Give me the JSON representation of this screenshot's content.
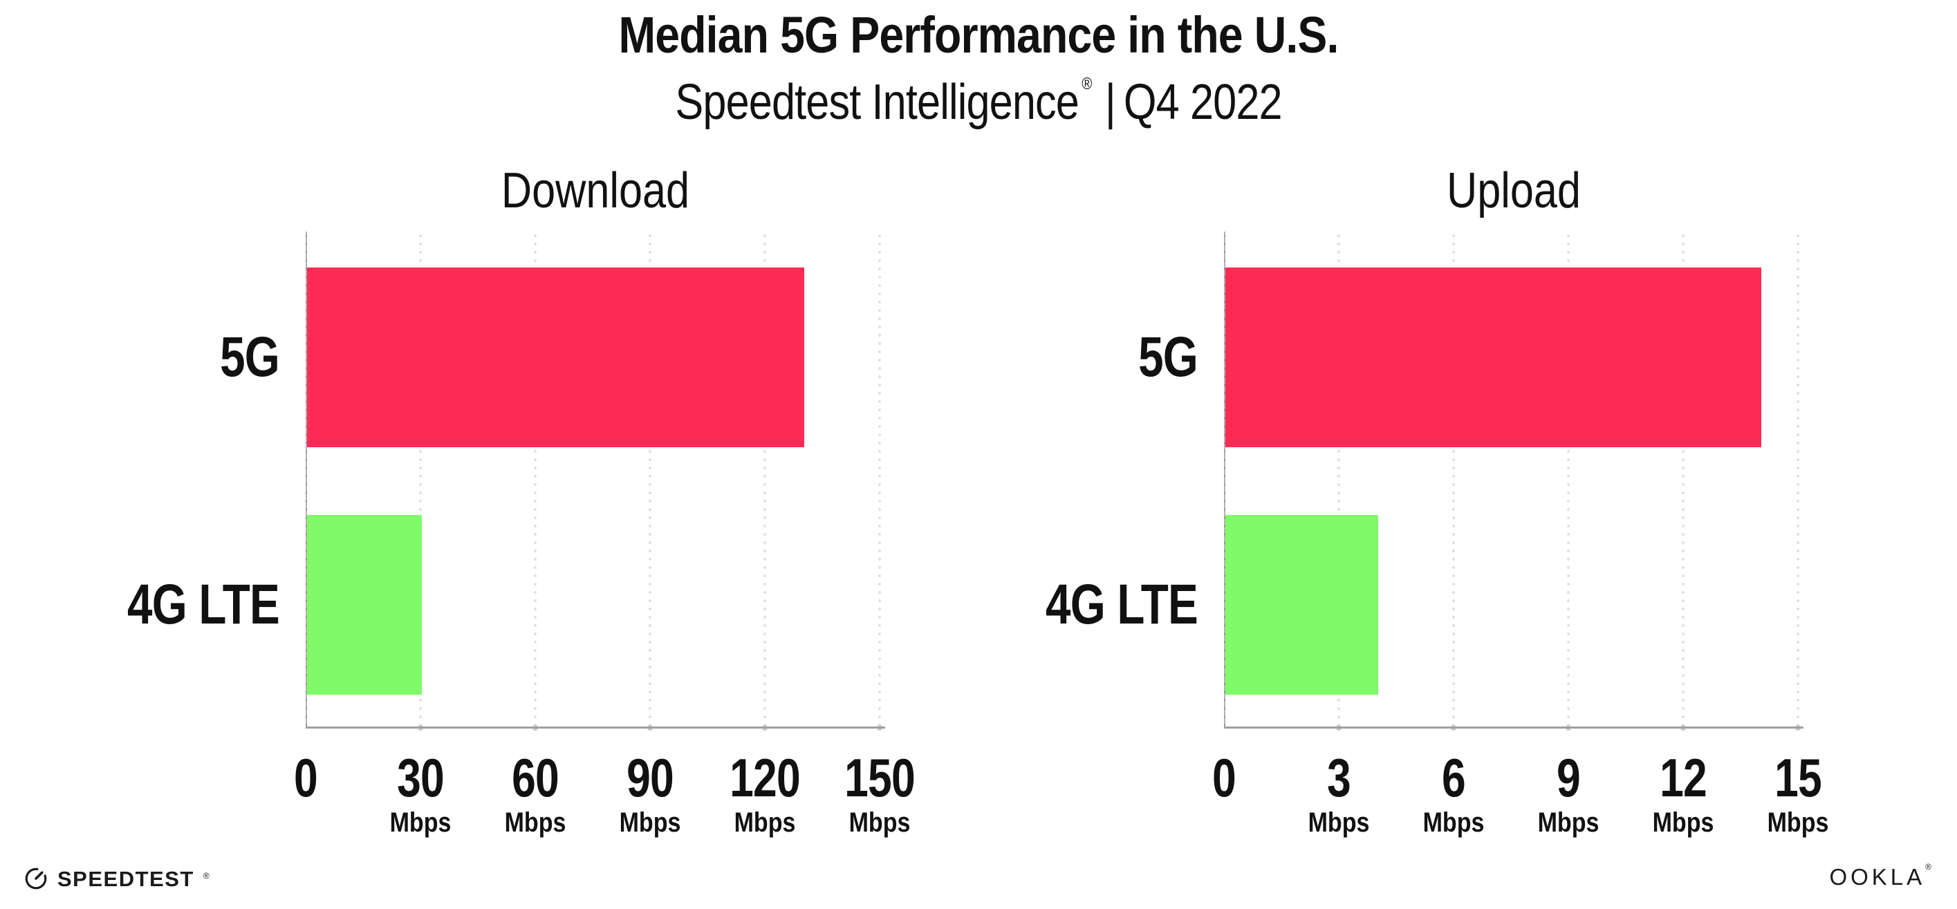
{
  "header": {
    "title": "Median 5G Performance in the U.S.",
    "subtitle": {
      "product": "Speedtest Intelligence",
      "registered_mark": "®",
      "divider": "|",
      "period": "Q4 2022"
    }
  },
  "chart_data": [
    {
      "type": "bar",
      "orientation": "horizontal",
      "title": "Download",
      "categories": [
        "5G",
        "4G LTE"
      ],
      "values": [
        130,
        30
      ],
      "value_unit": "Mbps",
      "xlim": [
        0,
        150
      ],
      "xticks": [
        0,
        30,
        60,
        90,
        120,
        150
      ],
      "xtick_unit_label": "Mbps",
      "unit_shown_on_zero_tick": false,
      "bar_colors": [
        "#FB2B55",
        "#80FA68"
      ],
      "grid": "dotted-vertical",
      "legend": "none"
    },
    {
      "type": "bar",
      "orientation": "horizontal",
      "title": "Upload",
      "categories": [
        "5G",
        "4G LTE"
      ],
      "values": [
        14,
        4
      ],
      "value_unit": "Mbps",
      "xlim": [
        0,
        15
      ],
      "xticks": [
        0,
        3,
        6,
        9,
        12,
        15
      ],
      "xtick_unit_label": "Mbps",
      "unit_shown_on_zero_tick": false,
      "bar_colors": [
        "#FB2B55",
        "#80FA68"
      ],
      "grid": "dotted-vertical",
      "legend": "none"
    }
  ],
  "footer": {
    "speedtest_logo_text": "SPEEDTEST",
    "speedtest_registered_mark": "®",
    "ookla_logo_text": "OOKLA",
    "ookla_registered_mark": "®"
  },
  "icons": {
    "speedtest_logo": "gauge-icon"
  },
  "colors": {
    "background": "#FFFFFF",
    "text": "#111111",
    "bar_5g": "#FB2B55",
    "bar_4g_lte": "#80FA68",
    "gridline": "#DCDCE8",
    "axis": "#A5A5A5"
  }
}
